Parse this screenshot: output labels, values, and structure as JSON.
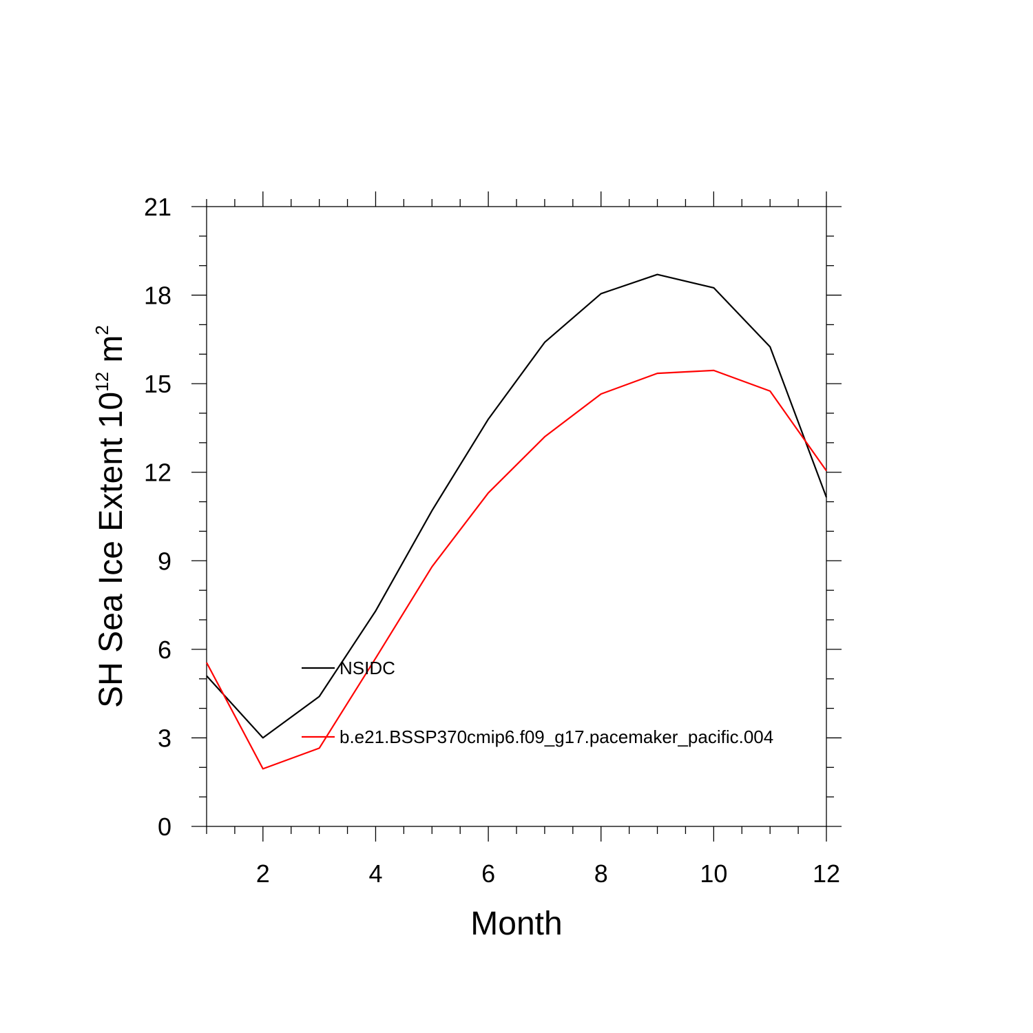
{
  "chart_data": {
    "type": "line",
    "title": "",
    "xlabel": "Month",
    "ylabel": {
      "text": "SH Sea Ice Extent 10",
      "exponent": "12",
      "unit": " m",
      "unit_exponent": "2"
    },
    "xlim": [
      1,
      12
    ],
    "ylim": [
      0,
      21
    ],
    "xticks": [
      2,
      4,
      6,
      8,
      10,
      12
    ],
    "yticks": [
      0,
      3,
      6,
      9,
      12,
      15,
      18,
      21
    ],
    "x_minor_step": 0.5,
    "y_minor_step": 1,
    "legend_position": "center-left",
    "x": [
      1,
      2,
      3,
      4,
      5,
      6,
      7,
      8,
      9,
      10,
      11,
      12
    ],
    "series": [
      {
        "name": "NSIDC",
        "color": "#000000",
        "values": [
          5.1,
          3.0,
          4.4,
          7.3,
          10.7,
          13.8,
          16.4,
          18.05,
          18.7,
          18.25,
          16.25,
          11.15
        ]
      },
      {
        "name": "b.e21.BSSP370cmip6.f09_g17.pacemaker_pacific.004",
        "color": "#ff0000",
        "values": [
          5.55,
          1.95,
          2.65,
          5.7,
          8.8,
          11.3,
          13.2,
          14.65,
          15.35,
          15.45,
          14.75,
          12.05
        ]
      }
    ]
  }
}
